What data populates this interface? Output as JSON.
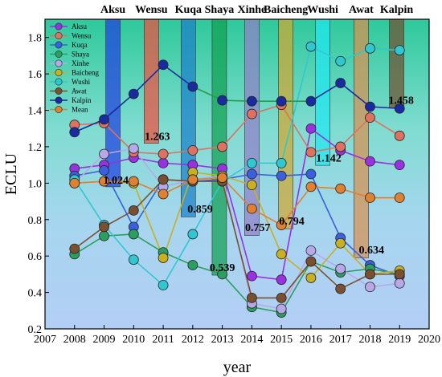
{
  "chart_data": {
    "type": "line",
    "xlabel": "year",
    "ylabel": "ECLU",
    "xlim": [
      2007,
      2020
    ],
    "ylim": [
      0.2,
      1.9
    ],
    "x_ticks": [
      "2007",
      "2008",
      "2009",
      "2010",
      "2011",
      "2012",
      "2013",
      "2014",
      "2015",
      "2016",
      "2017",
      "2018",
      "2019",
      "2020"
    ],
    "y_ticks": [
      "0.2",
      "0.4",
      "0.6",
      "0.8",
      "1.0",
      "1.2",
      "1.4",
      "1.6",
      "1.8"
    ],
    "x": [
      2008,
      2009,
      2010,
      2011,
      2012,
      2013,
      2014,
      2015,
      2016,
      2017,
      2018,
      2019
    ],
    "legend_position": "top-left",
    "series": [
      {
        "name": "Aksu",
        "color": "#9b30e0",
        "values": [
          1.08,
          1.1,
          1.14,
          1.11,
          1.1,
          1.08,
          0.49,
          0.47,
          1.3,
          1.18,
          1.12,
          1.1
        ]
      },
      {
        "name": "Wensu",
        "color": "#e07060",
        "values": [
          1.32,
          1.33,
          1.17,
          1.16,
          1.18,
          1.2,
          1.38,
          1.43,
          1.17,
          1.2,
          1.36,
          1.26
        ]
      },
      {
        "name": "Kuqa",
        "color": "#3a60e0",
        "values": [
          1.04,
          1.07,
          0.76,
          1.02,
          1.01,
          1.02,
          1.05,
          1.04,
          1.05,
          0.7,
          0.55,
          0.49
        ]
      },
      {
        "name": "Shaya",
        "color": "#2aa060",
        "values": [
          0.61,
          0.71,
          0.72,
          0.62,
          0.55,
          0.5,
          0.32,
          0.29,
          0.57,
          0.51,
          0.53,
          0.5
        ]
      },
      {
        "name": "Xinhe",
        "color": "#b8a8e8",
        "values": [
          1.0,
          1.16,
          1.19,
          0.98,
          1.02,
          1.04,
          0.34,
          0.31,
          0.63,
          0.53,
          0.43,
          0.45
        ]
      },
      {
        "name": "Baicheng",
        "color": "#c8b020",
        "values": [
          1.0,
          1.01,
          1.0,
          0.59,
          1.06,
          1.04,
          0.99,
          0.61,
          0.48,
          0.67,
          0.5,
          0.52
        ]
      },
      {
        "name": "Wushi",
        "color": "#30c8d0",
        "values": [
          1.02,
          0.77,
          0.58,
          0.44,
          0.72,
          1.01,
          1.11,
          1.11,
          1.75,
          1.67,
          1.74,
          1.73
        ]
      },
      {
        "name": "Awat",
        "color": "#7a5030",
        "values": [
          0.64,
          0.76,
          0.85,
          1.02,
          1.01,
          1.01,
          0.37,
          0.37,
          0.57,
          0.42,
          0.5,
          0.5
        ]
      },
      {
        "name": "Kalpin",
        "color": "#1a2aa0",
        "values": [
          1.28,
          1.35,
          1.49,
          1.65,
          1.53,
          null,
          null,
          null,
          1.45,
          1.55,
          1.42,
          1.41
        ]
      },
      {
        "name": "Mean",
        "color": "#e08030",
        "values": [
          1.0,
          1.01,
          1.01,
          0.94,
          1.02,
          1.03,
          0.86,
          0.77,
          0.98,
          0.97,
          0.92,
          0.92
        ]
      }
    ],
    "bars": [
      {
        "county": "Aksu",
        "value": 1.024,
        "label": "1.024",
        "color": "#2040e0"
      },
      {
        "county": "Wensu",
        "value": 1.263,
        "label": "1.263",
        "color": "#f05040"
      },
      {
        "county": "Kuqa",
        "value": 0.859,
        "label": "0.859",
        "color": "#1a80c8"
      },
      {
        "county": "Shaya",
        "value": 0.539,
        "label": "0.539",
        "color": "#10a050"
      },
      {
        "county": "Xinhe",
        "value": 0.757,
        "label": "0.757",
        "color": "#9080c8"
      },
      {
        "county": "Baicheng",
        "value": 0.794,
        "label": "0.794",
        "color": "#d0a830"
      },
      {
        "county": "Wushi",
        "value": 1.142,
        "label": "1.142",
        "color": "#20e8f0"
      },
      {
        "county": "Awat",
        "value": 0.634,
        "label": "0.634",
        "color": "#d89050"
      },
      {
        "county": "Kalpin",
        "value": 1.458,
        "label": "1.458",
        "color": "#705030"
      }
    ]
  }
}
